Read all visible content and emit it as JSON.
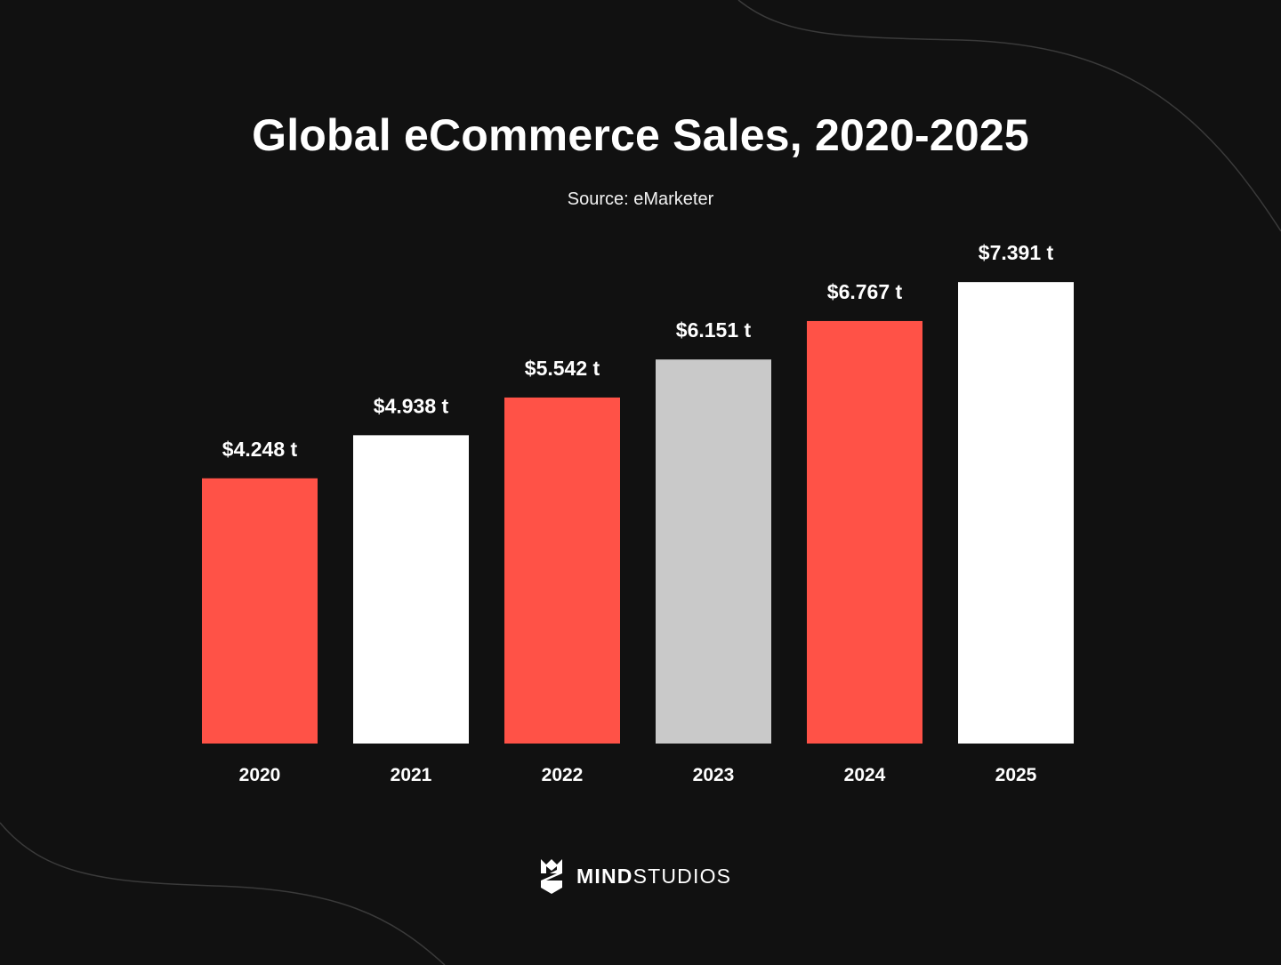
{
  "colors": {
    "background": "#111111",
    "red": "#ff5247",
    "white": "#ffffff",
    "gray": "#c9c9c9"
  },
  "chart_data": {
    "type": "bar",
    "title": "Global eCommerce Sales, 2020-2025",
    "subtitle": "Source: eMarketer",
    "categories": [
      "2020",
      "2021",
      "2022",
      "2023",
      "2024",
      "2025"
    ],
    "values": [
      4.248,
      4.938,
      5.542,
      6.151,
      6.767,
      7.391
    ],
    "data_labels": [
      "$4.248 t",
      "$4.938 t",
      "$5.542 t",
      "$6.151 t",
      "$6.767 t",
      "$7.391 t"
    ],
    "bar_colors": [
      "#ff5247",
      "#ffffff",
      "#ff5247",
      "#c9c9c9",
      "#ff5247",
      "#ffffff"
    ],
    "xlabel": "",
    "ylabel": "",
    "grid": false,
    "legend": "none"
  },
  "brand": {
    "logo_icon": "mindstudios-logo-icon",
    "name_bold": "MIND",
    "name_light": "STUDIOS"
  }
}
